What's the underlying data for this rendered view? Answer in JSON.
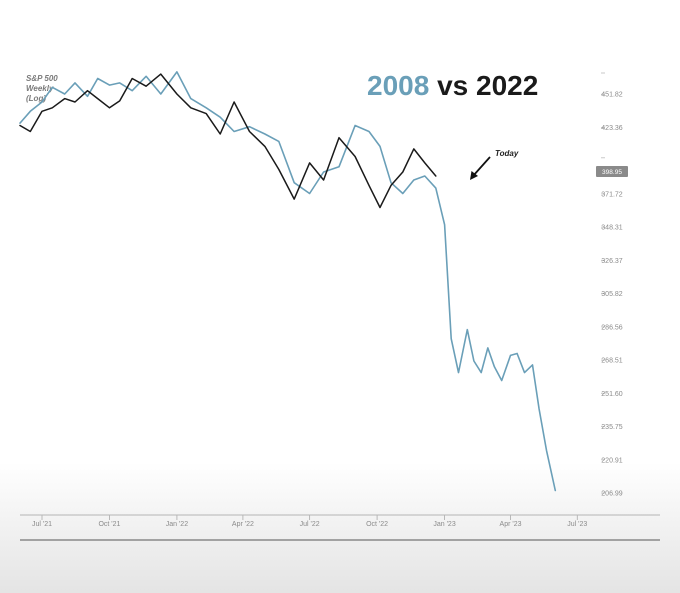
{
  "chart_data": {
    "type": "line",
    "title_part1": "2008",
    "title_part2": " vs 2022",
    "subtitle": [
      "S&P 500",
      "Weekly",
      "(Log)"
    ],
    "colors": {
      "series_2008": "#6a9fb8",
      "series_2022": "#1a1a1a",
      "title_2008": "#6a9fb8",
      "title_rest": "#1a1a1a",
      "badge": "#8a8a8a"
    },
    "x_ticks": [
      "Jul '21",
      "Oct '21",
      "Jan '22",
      "Apr '22",
      "Jul '22",
      "Oct '22",
      "Jan '23",
      "Apr '23",
      "Jul '23"
    ],
    "y_ticks": [
      471.0,
      451.82,
      423.36,
      398.95,
      371.72,
      348.31,
      326.37,
      305.82,
      286.56,
      268.51,
      251.6,
      235.75,
      220.91,
      206.99
    ],
    "y_tick_labels": [
      "",
      "451.82",
      "423.36",
      "",
      "371.72",
      "348.31",
      "326.37",
      "305.82",
      "286.56",
      "268.51",
      "251.60",
      "235.75",
      "220.91",
      "206.99"
    ],
    "current_value_label": "398.95",
    "annotation": "Today",
    "x_range": [
      "2021-06-01",
      "2023-08-01"
    ],
    "y_scale": "log",
    "series": [
      {
        "key": "2008",
        "x": [
          "2021-06-01",
          "2021-06-15",
          "2021-07-01",
          "2021-07-15",
          "2021-08-01",
          "2021-08-15",
          "2021-09-01",
          "2021-09-15",
          "2021-10-01",
          "2021-10-15",
          "2021-11-01",
          "2021-11-20",
          "2021-12-10",
          "2022-01-01",
          "2022-01-20",
          "2022-02-10",
          "2022-03-01",
          "2022-03-20",
          "2022-04-10",
          "2022-05-01",
          "2022-05-20",
          "2022-06-10",
          "2022-07-01",
          "2022-07-20",
          "2022-08-10",
          "2022-09-01",
          "2022-09-20",
          "2022-10-05",
          "2022-10-20",
          "2022-11-05",
          "2022-11-20",
          "2022-12-05",
          "2022-12-20",
          "2023-01-01",
          "2023-01-10",
          "2023-01-20",
          "2023-02-01",
          "2023-02-10",
          "2023-02-20",
          "2023-03-01",
          "2023-03-10",
          "2023-03-20",
          "2023-04-01",
          "2023-04-10",
          "2023-04-20",
          "2023-05-01",
          "2023-05-10",
          "2023-05-20",
          "2023-06-01"
        ],
        "y": [
          427,
          437,
          445,
          458,
          452,
          462,
          450,
          466,
          460,
          462,
          455,
          468,
          452,
          472,
          448,
          440,
          432,
          420,
          424,
          418,
          412,
          380,
          372,
          388,
          392,
          425,
          420,
          408,
          380,
          372,
          382,
          385,
          376,
          350,
          280,
          262,
          285,
          268,
          262,
          275,
          265,
          258,
          271,
          272,
          262,
          266,
          244,
          225,
          208
        ]
      },
      {
        "key": "2022",
        "x": [
          "2021-06-01",
          "2021-06-15",
          "2021-07-01",
          "2021-07-15",
          "2021-08-01",
          "2021-08-15",
          "2021-09-01",
          "2021-09-15",
          "2021-10-01",
          "2021-10-15",
          "2021-11-01",
          "2021-11-20",
          "2021-12-10",
          "2022-01-01",
          "2022-01-20",
          "2022-02-10",
          "2022-03-01",
          "2022-03-20",
          "2022-04-10",
          "2022-05-01",
          "2022-05-20",
          "2022-06-10",
          "2022-07-01",
          "2022-07-20",
          "2022-08-10",
          "2022-09-01",
          "2022-09-20",
          "2022-10-05",
          "2022-10-20",
          "2022-11-05",
          "2022-11-20",
          "2022-12-05",
          "2022-12-20"
        ],
        "y": [
          425,
          420,
          437,
          440,
          448,
          445,
          455,
          448,
          440,
          446,
          466,
          459,
          470,
          452,
          440,
          435,
          418,
          445,
          420,
          408,
          390,
          368,
          395,
          382,
          415,
          400,
          378,
          362,
          378,
          388,
          406,
          395,
          385
        ]
      }
    ]
  }
}
